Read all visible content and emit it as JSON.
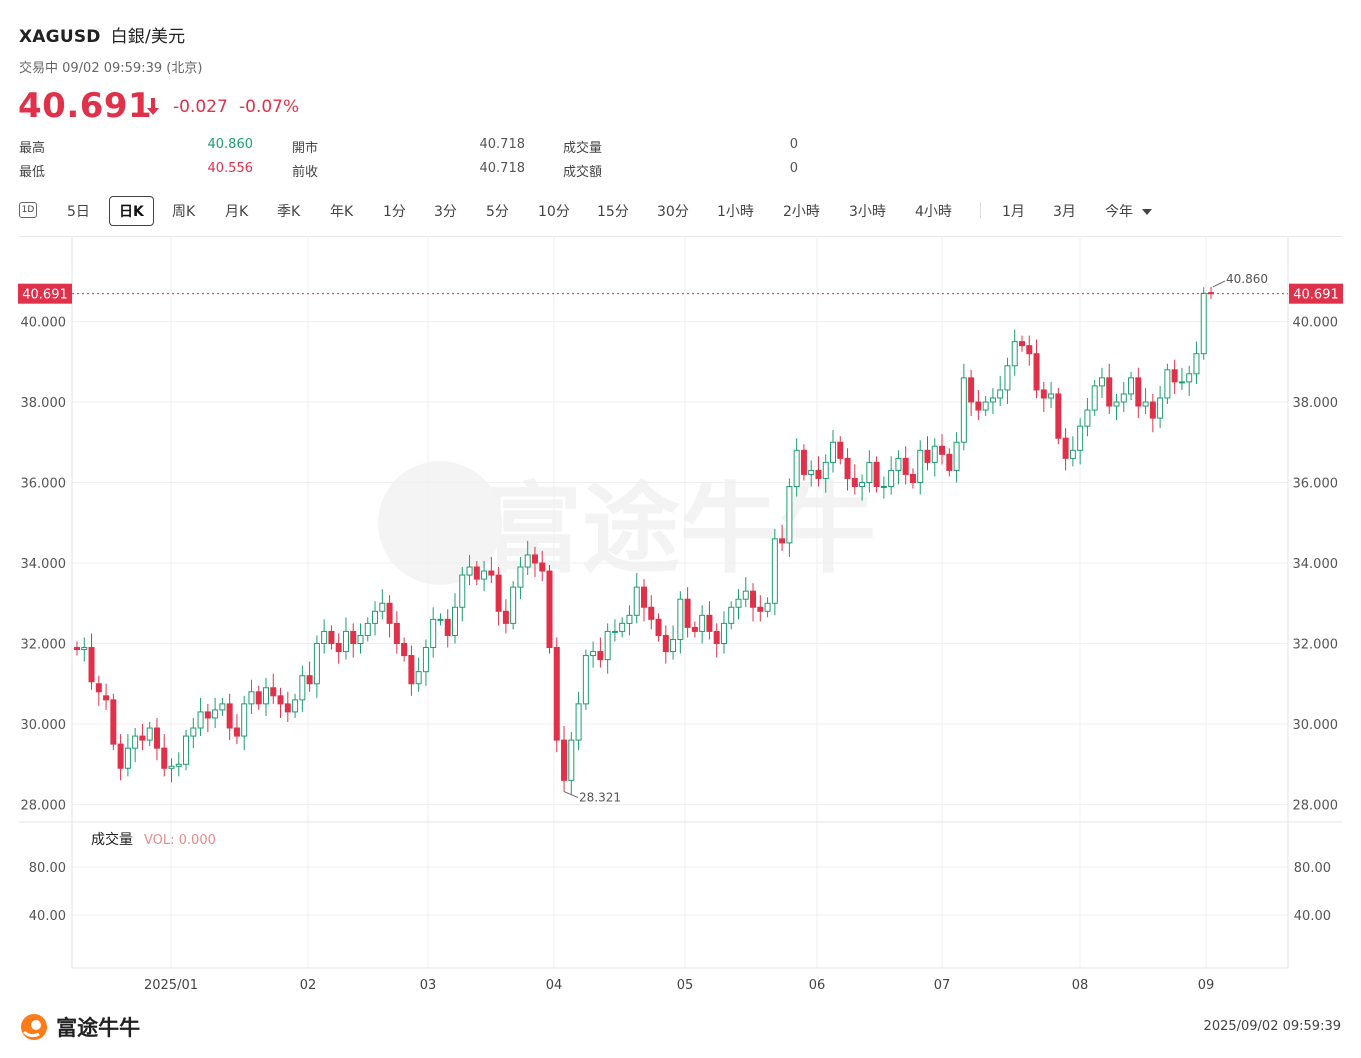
{
  "header": {
    "symbol": "XAGUSD",
    "name": "白銀/美元",
    "status": "交易中 09/02 09:59:39 (北京)",
    "price": "40.691",
    "change": "-0.027",
    "change_pct": "-0.07%"
  },
  "stats": {
    "high_label": "最高",
    "high_value": "40.860",
    "low_label": "最低",
    "low_value": "40.556",
    "open_label": "開市",
    "open_value": "40.718",
    "prev_label": "前收",
    "prev_value": "40.718",
    "vol_label": "成交量",
    "vol_value": "0",
    "amt_label": "成交額",
    "amt_value": "0"
  },
  "tabs": [
    "5日",
    "日K",
    "周K",
    "月K",
    "季K",
    "年K",
    "1分",
    "3分",
    "5分",
    "10分",
    "15分",
    "30分",
    "1小時",
    "2小時",
    "3小時",
    "4小時",
    "1月",
    "3月",
    "今年"
  ],
  "tab_1d": "1D",
  "active_tab": "日K",
  "colors": {
    "up": "#1d9e6f",
    "down": "#e0314b",
    "grid": "#efefef"
  },
  "chart_data": {
    "type": "candlestick",
    "y_ticks": [
      "40.000",
      "38.000",
      "36.000",
      "34.000",
      "32.000",
      "30.000",
      "28.000"
    ],
    "y_range": [
      27.5,
      41.5
    ],
    "x_labels": [
      "2025/01",
      "02",
      "03",
      "04",
      "05",
      "06",
      "07",
      "08",
      "09"
    ],
    "current_price_label": "40.691",
    "high_annotation": "40.860",
    "low_annotation": "28.321",
    "volume_label": "成交量",
    "volume_value": "VOL: 0.000",
    "volume_ticks": [
      "80.00",
      "40.00"
    ],
    "watermark": "富途牛牛",
    "closes": [
      31.85,
      31.9,
      31.05,
      30.8,
      30.6,
      29.5,
      28.9,
      29.4,
      29.7,
      29.6,
      29.9,
      29.4,
      28.9,
      28.95,
      29.0,
      29.7,
      29.9,
      30.3,
      30.15,
      30.35,
      30.5,
      29.9,
      29.7,
      30.5,
      30.8,
      30.5,
      30.9,
      30.7,
      30.5,
      30.3,
      30.6,
      31.2,
      31.0,
      32.0,
      32.3,
      32.0,
      31.8,
      32.3,
      32.0,
      32.2,
      32.5,
      32.8,
      33.0,
      32.5,
      32.0,
      31.7,
      31.0,
      31.3,
      31.9,
      32.6,
      32.6,
      32.2,
      32.9,
      33.7,
      33.9,
      33.6,
      33.8,
      33.7,
      32.8,
      32.5,
      33.4,
      33.9,
      34.2,
      34.0,
      33.8,
      31.9,
      29.6,
      28.6,
      29.6,
      30.5,
      31.7,
      31.8,
      31.6,
      32.3,
      32.3,
      32.5,
      32.7,
      33.4,
      32.9,
      32.6,
      32.2,
      31.8,
      32.1,
      33.1,
      32.4,
      32.3,
      32.7,
      32.3,
      32.0,
      32.5,
      32.9,
      33.1,
      33.3,
      32.9,
      32.8,
      33.0,
      34.6,
      34.5,
      35.9,
      36.8,
      36.2,
      36.3,
      36.1,
      36.5,
      37.0,
      36.6,
      36.1,
      35.9,
      36.0,
      36.5,
      35.9,
      35.9,
      36.3,
      36.6,
      36.2,
      36.0,
      36.8,
      36.5,
      36.9,
      36.7,
      36.3,
      37.0,
      38.6,
      38.0,
      37.8,
      38.0,
      38.1,
      38.3,
      38.9,
      39.5,
      39.4,
      39.2,
      38.3,
      38.1,
      38.2,
      37.1,
      36.6,
      36.8,
      37.4,
      37.8,
      38.4,
      38.6,
      37.9,
      38.0,
      38.2,
      38.6,
      37.9,
      38.0,
      37.6,
      38.1,
      38.8,
      38.5,
      38.5,
      38.7,
      39.2,
      40.7,
      40.69
    ],
    "opens": [
      31.9,
      31.85,
      31.9,
      31.0,
      30.7,
      30.6,
      29.5,
      28.9,
      29.4,
      29.7,
      29.6,
      29.9,
      29.4,
      28.9,
      28.95,
      29.0,
      29.7,
      29.9,
      30.3,
      30.15,
      30.35,
      30.5,
      29.9,
      29.7,
      30.5,
      30.8,
      30.5,
      30.9,
      30.7,
      30.5,
      30.3,
      30.6,
      31.2,
      31.0,
      32.0,
      32.3,
      32.0,
      31.8,
      32.3,
      32.0,
      32.2,
      32.5,
      32.8,
      33.0,
      32.5,
      32.0,
      31.7,
      31.0,
      31.3,
      31.9,
      32.6,
      32.6,
      32.2,
      32.9,
      33.7,
      33.9,
      33.6,
      33.8,
      33.7,
      32.8,
      32.5,
      33.4,
      33.9,
      34.2,
      34.0,
      33.8,
      31.9,
      29.6,
      28.6,
      29.6,
      30.5,
      31.7,
      31.8,
      31.6,
      32.3,
      32.3,
      32.5,
      32.7,
      33.4,
      32.9,
      32.6,
      32.2,
      31.8,
      32.1,
      33.1,
      32.4,
      32.3,
      32.7,
      32.3,
      32.0,
      32.5,
      32.9,
      33.1,
      33.3,
      32.9,
      32.8,
      33.0,
      34.6,
      34.5,
      35.9,
      36.8,
      36.2,
      36.3,
      36.1,
      36.5,
      37.0,
      36.6,
      36.1,
      35.9,
      36.0,
      36.5,
      35.9,
      35.9,
      36.3,
      36.6,
      36.2,
      36.0,
      36.8,
      36.5,
      36.9,
      36.7,
      36.3,
      37.0,
      38.6,
      38.0,
      37.8,
      38.0,
      38.1,
      38.3,
      38.9,
      39.5,
      39.4,
      39.2,
      38.3,
      38.1,
      38.2,
      37.1,
      36.6,
      36.8,
      37.4,
      37.8,
      38.4,
      38.6,
      37.9,
      38.0,
      38.2,
      38.6,
      37.9,
      38.0,
      37.6,
      38.1,
      38.8,
      38.5,
      38.5,
      38.7,
      39.2,
      40.718
    ]
  },
  "footer": {
    "logo_text": "富途牛牛",
    "timestamp": "2025/09/02 09:59:39"
  }
}
